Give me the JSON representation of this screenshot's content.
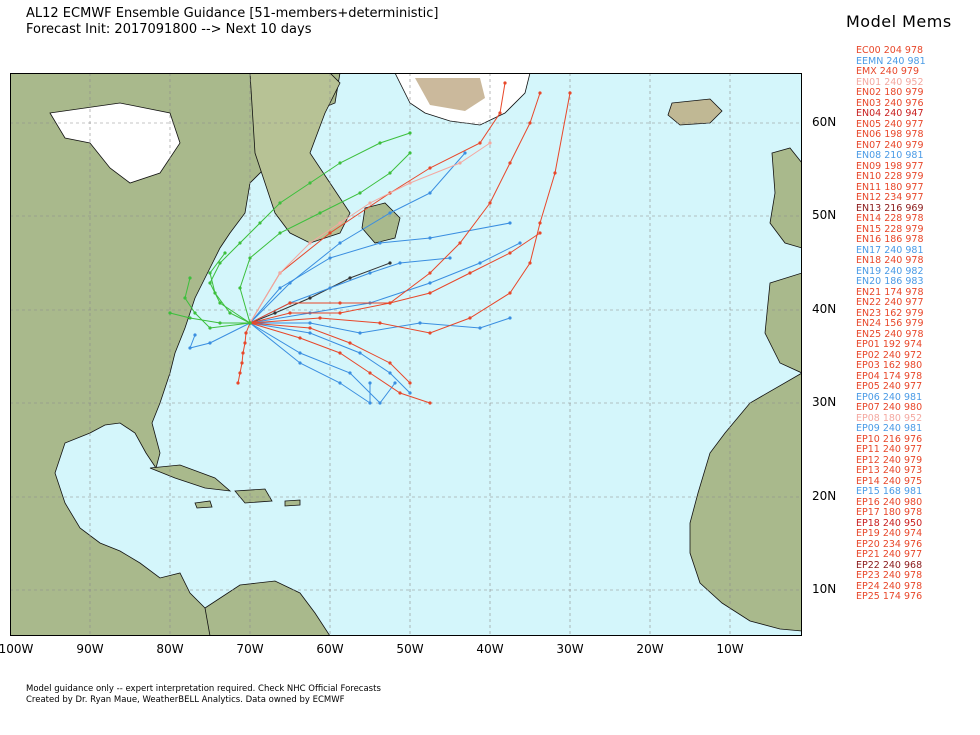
{
  "title": {
    "line1": "AL12 ECMWF Ensemble Guidance [51-members+deterministic]",
    "line2": "Forecast Init: 2017091800 --> Next 10 days"
  },
  "legend": {
    "title": "Model Mems",
    "entries": [
      {
        "label": "EC00 204 978",
        "color": "#e8472a"
      },
      {
        "label": "EEMN 240 981",
        "color": "#4a9be6"
      },
      {
        "label": "EMX 240 979",
        "color": "#e8472a"
      },
      {
        "label": "EN01 240 952",
        "color": "#f4a8a0"
      },
      {
        "label": "EN02 180 979",
        "color": "#e8472a"
      },
      {
        "label": "EN03 240 976",
        "color": "#e8472a"
      },
      {
        "label": "EN04 240 947",
        "color": "#c81e1e"
      },
      {
        "label": "EN05 240 977",
        "color": "#e8472a"
      },
      {
        "label": "EN06 198 978",
        "color": "#e8472a"
      },
      {
        "label": "EN07 240 979",
        "color": "#e8472a"
      },
      {
        "label": "EN08 210 981",
        "color": "#4a9be6"
      },
      {
        "label": "EN09 198 977",
        "color": "#e8472a"
      },
      {
        "label": "EN10 228 979",
        "color": "#e8472a"
      },
      {
        "label": "EN11 180 977",
        "color": "#e8472a"
      },
      {
        "label": "EN12 234 977",
        "color": "#e8472a"
      },
      {
        "label": "EN13 216 969",
        "color": "#8b1a1a"
      },
      {
        "label": "EN14 228 978",
        "color": "#e8472a"
      },
      {
        "label": "EN15 228 979",
        "color": "#e8472a"
      },
      {
        "label": "EN16 186 978",
        "color": "#e8472a"
      },
      {
        "label": "EN17 240 981",
        "color": "#4a9be6"
      },
      {
        "label": "EN18 240 978",
        "color": "#e8472a"
      },
      {
        "label": "EN19 240 982",
        "color": "#4a9be6"
      },
      {
        "label": "EN20 186 983",
        "color": "#4a9be6"
      },
      {
        "label": "EN21 174 978",
        "color": "#e8472a"
      },
      {
        "label": "EN22 240 977",
        "color": "#e8472a"
      },
      {
        "label": "EN23 162 979",
        "color": "#e8472a"
      },
      {
        "label": "EN24 156 979",
        "color": "#e8472a"
      },
      {
        "label": "EN25 240 978",
        "color": "#e8472a"
      },
      {
        "label": "EP01 192 974",
        "color": "#e8472a"
      },
      {
        "label": "EP02 240 972",
        "color": "#e8472a"
      },
      {
        "label": "EP03 162 980",
        "color": "#e8472a"
      },
      {
        "label": "EP04 174 978",
        "color": "#e8472a"
      },
      {
        "label": "EP05 240 977",
        "color": "#e8472a"
      },
      {
        "label": "EP06 240 981",
        "color": "#4a9be6"
      },
      {
        "label": "EP07 240 980",
        "color": "#e8472a"
      },
      {
        "label": "EP08 180 952",
        "color": "#f4a8a0"
      },
      {
        "label": "EP09 240 981",
        "color": "#4a9be6"
      },
      {
        "label": "EP10 216 976",
        "color": "#e8472a"
      },
      {
        "label": "EP11 240 977",
        "color": "#e8472a"
      },
      {
        "label": "EP12 240 979",
        "color": "#e8472a"
      },
      {
        "label": "EP13 240 973",
        "color": "#e8472a"
      },
      {
        "label": "EP14 240 975",
        "color": "#e8472a"
      },
      {
        "label": "EP15 168 981",
        "color": "#4a9be6"
      },
      {
        "label": "EP16 240 980",
        "color": "#e8472a"
      },
      {
        "label": "EP17 180 978",
        "color": "#e8472a"
      },
      {
        "label": "EP18 240 950",
        "color": "#c81e1e"
      },
      {
        "label": "EP19 240 974",
        "color": "#e8472a"
      },
      {
        "label": "EP20 234 976",
        "color": "#e8472a"
      },
      {
        "label": "EP21 240 977",
        "color": "#e8472a"
      },
      {
        "label": "EP22 240 968",
        "color": "#8b1a1a"
      },
      {
        "label": "EP23 240 978",
        "color": "#e8472a"
      },
      {
        "label": "EP24 240 978",
        "color": "#e8472a"
      },
      {
        "label": "EP25 174 976",
        "color": "#e8472a"
      }
    ]
  },
  "map": {
    "lat_labels": [
      "60N",
      "50N",
      "40N",
      "30N",
      "20N",
      "10N"
    ],
    "lon_labels": [
      "100W",
      "90W",
      "80W",
      "70W",
      "60W",
      "50W",
      "40W",
      "30W",
      "20W",
      "10W"
    ],
    "colors": {
      "ocean": "#d4f6fb",
      "land": "#a6b98a",
      "ice": "#ffffff",
      "grid": "#8a8a8a"
    }
  },
  "footer": {
    "line1": "Model guidance only -- expert interpretation required.  Check NHC Official Forecasts",
    "line2": "Created by Dr. Ryan Maue, WeatherBELL Analytics.  Data owned by ECMWF"
  }
}
